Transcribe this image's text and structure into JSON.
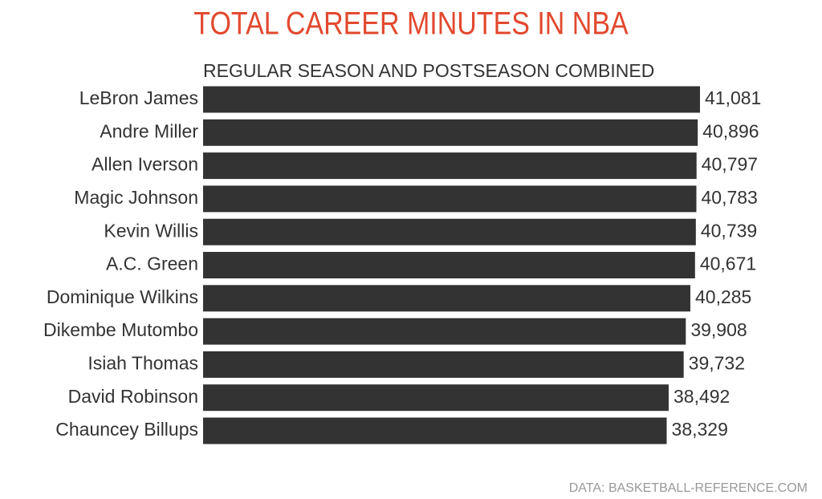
{
  "chart_data": {
    "type": "bar",
    "orientation": "horizontal",
    "title": "TOTAL CAREER MINUTES IN NBA",
    "subtitle": "REGULAR SEASON AND POSTSEASON COMBINED",
    "source": "DATA: BASKETBALL-REFERENCE.COM",
    "categories": [
      "LeBron James",
      "Andre Miller",
      "Allen Iverson",
      "Magic Johnson",
      "Kevin Willis",
      "A.C. Green",
      "Dominique Wilkins",
      "Dikembe Mutombo",
      "Isiah Thomas",
      "David Robinson",
      "Chauncey Billups"
    ],
    "values": [
      41081,
      40896,
      40797,
      40783,
      40739,
      40671,
      40285,
      39908,
      39732,
      38492,
      38329
    ],
    "value_labels": [
      "41,081",
      "40,896",
      "40,797",
      "40,783",
      "40,739",
      "40,671",
      "40,285",
      "39,908",
      "39,732",
      "38,492",
      "38,329"
    ],
    "color": "#333333",
    "title_color": "#e2492f"
  }
}
